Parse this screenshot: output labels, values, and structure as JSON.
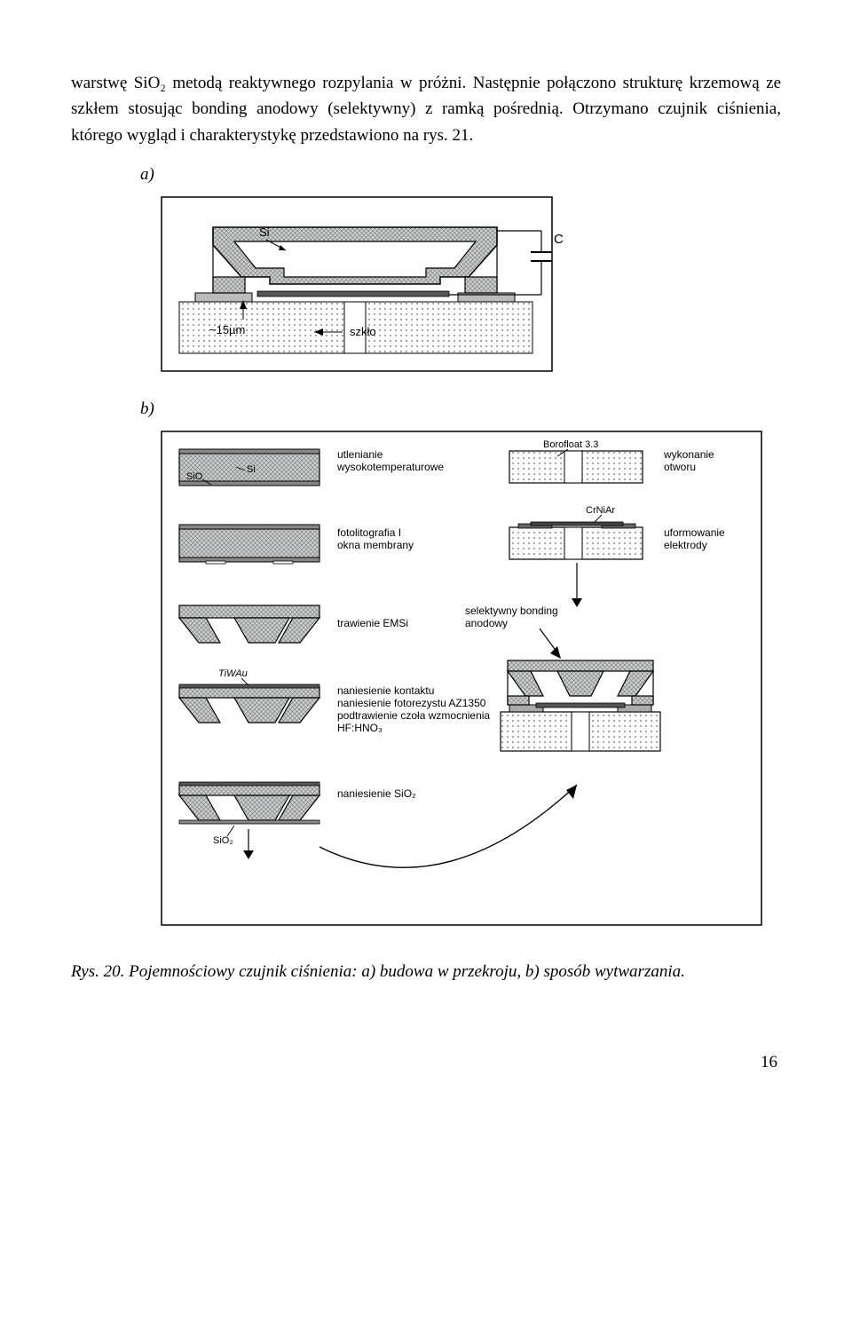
{
  "text": {
    "paragraph": "warstwę SiO₂ metodą reaktywnego rozpylania w próżni. Następnie połączono strukturę krzemową ze szkłem stosując bonding anodowy (selektywny) z ramką pośrednią. Otrzymano czujnik ciśnienia, którego wygląd i charakterystykę przedstawiono na rys. 21."
  },
  "labels": {
    "a": "a)",
    "b": "b)"
  },
  "figA": {
    "si": "Si",
    "cap": "C",
    "thickness": "~15µm",
    "glass": "szkło"
  },
  "figB": {
    "left": {
      "sio": "SiO",
      "si": "Si",
      "tiwau": "TiWAu",
      "sio2": "SiO₂",
      "step1": "utlenianie\nwysokotemperaturowe",
      "step2": "fotolitografia I\nokna membrany",
      "step3": "trawienie EMSi",
      "step4": "naniesienie kontaktu\nnaniesienie fotorezystu AZ1350\npodtrawienie czoła wzmocnienia\nHF:HNO₃",
      "step5": "naniesienie SiO₂"
    },
    "right": {
      "boro": "Borofloat 3.3",
      "crniar": "CrNiAr",
      "step1": "wykonanie\notworu",
      "step2": "uformowanie\nelektrody",
      "bonding": "selektywny bonding\nanodowy"
    }
  },
  "caption": "Rys. 20. Pojemnościowy czujnik ciśnienia: a) budowa w przekroju, b) sposób wytwarzania.",
  "pageNumber": "16",
  "colors": {
    "text": "#000000",
    "border": "#000000",
    "lightGrey": "#d0d0d0",
    "medGrey": "#b0b0b0",
    "hatch": "#a0a0a0",
    "background": "#ffffff"
  }
}
